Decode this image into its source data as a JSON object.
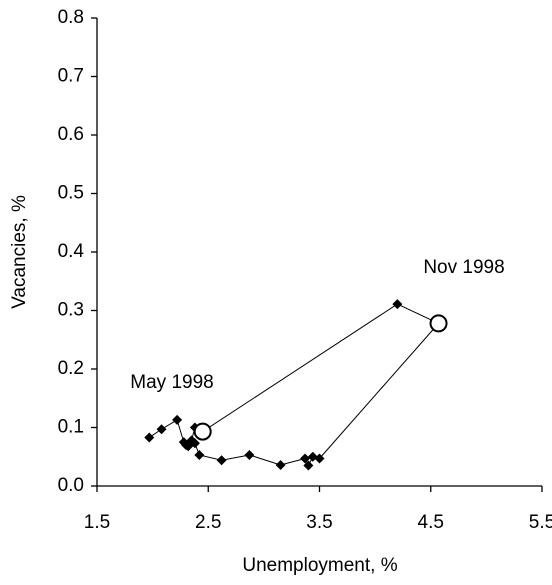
{
  "chart_data": {
    "type": "line",
    "x_label": "Unemployment, %",
    "y_label": "Vacancies, %",
    "annotations": [
      "May 1998",
      "Nov 1998"
    ],
    "series": [
      {
        "color": "#000000",
        "marker": "diamond",
        "x": [
          1.97,
          2.08,
          2.22,
          2.28,
          2.32,
          2.35,
          2.38,
          2.45,
          4.2,
          4.57,
          3.5,
          3.44,
          3.4,
          3.37,
          3.15,
          2.87,
          2.62,
          2.42,
          2.38,
          2.3
        ],
        "values": [
          0.083,
          0.097,
          0.113,
          0.075,
          0.068,
          0.078,
          0.1,
          0.093,
          0.311,
          0.278,
          0.047,
          0.05,
          0.035,
          0.047,
          0.036,
          0.053,
          0.044,
          0.053,
          0.073,
          0.07
        ]
      },
      {
        "color": "#ffffff",
        "marker": "circle",
        "x": [
          2.45,
          4.57
        ],
        "values": [
          0.093,
          0.278
        ]
      }
    ],
    "xlim": [
      1.5,
      5.5
    ],
    "xticks": [
      1.5,
      2.5,
      3.5,
      4.5,
      5.5
    ],
    "ylim": [
      0,
      0.8
    ],
    "yticks": [
      {
        "value": 0,
        "label": "0.0"
      },
      0.1,
      0.2,
      0.3,
      0.4,
      0.5,
      0.6,
      0.7,
      0.8
    ],
    "grid": false
  }
}
